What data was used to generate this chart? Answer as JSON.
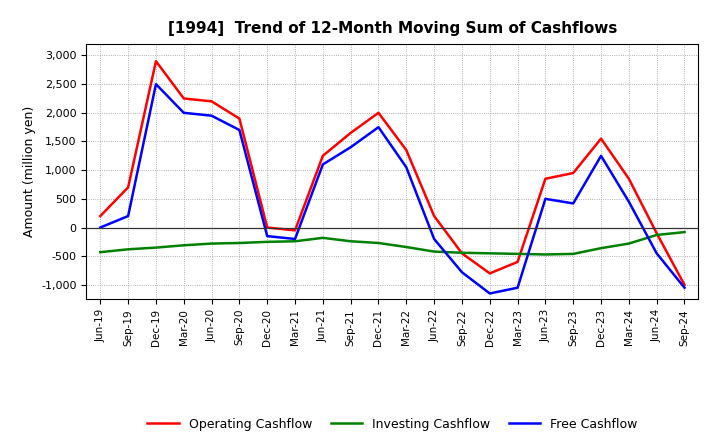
{
  "title": "[1994]  Trend of 12-Month Moving Sum of Cashflows",
  "ylabel": "Amount (million yen)",
  "ylim": [
    -1250,
    3200
  ],
  "yticks": [
    -1000,
    -500,
    0,
    500,
    1000,
    1500,
    2000,
    2500,
    3000
  ],
  "x_labels": [
    "Jun-19",
    "Sep-19",
    "Dec-19",
    "Mar-20",
    "Jun-20",
    "Sep-20",
    "Dec-20",
    "Mar-21",
    "Jun-21",
    "Sep-21",
    "Dec-21",
    "Mar-22",
    "Jun-22",
    "Sep-22",
    "Dec-22",
    "Mar-23",
    "Jun-23",
    "Sep-23",
    "Dec-23",
    "Mar-24",
    "Jun-24",
    "Sep-24"
  ],
  "operating": [
    200,
    700,
    2900,
    2250,
    2200,
    1900,
    0,
    -50,
    1250,
    1650,
    2000,
    1350,
    200,
    -450,
    -800,
    -600,
    850,
    950,
    1550,
    850,
    -100,
    -1000
  ],
  "investing": [
    -430,
    -380,
    -350,
    -310,
    -280,
    -270,
    -250,
    -240,
    -180,
    -240,
    -270,
    -340,
    -420,
    -440,
    -450,
    -460,
    -470,
    -460,
    -360,
    -280,
    -130,
    -80
  ],
  "free": [
    0,
    200,
    2500,
    2000,
    1950,
    1700,
    -150,
    -200,
    1100,
    1400,
    1750,
    1050,
    -200,
    -780,
    -1150,
    -1050,
    500,
    420,
    1250,
    450,
    -450,
    -1050
  ],
  "operating_color": "#FF0000",
  "investing_color": "#008000",
  "free_color": "#0000FF",
  "line_width": 1.8,
  "background_color": "#FFFFFF",
  "grid_color": "#999999",
  "legend_labels": [
    "Operating Cashflow",
    "Investing Cashflow",
    "Free Cashflow"
  ]
}
